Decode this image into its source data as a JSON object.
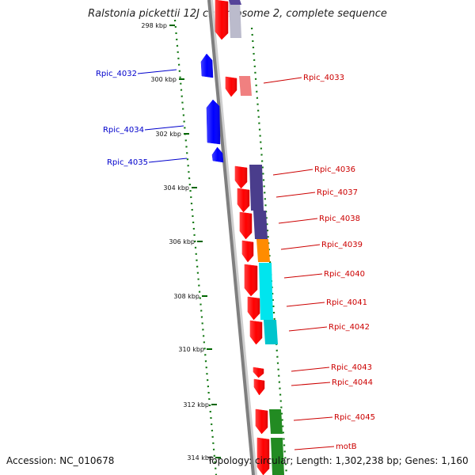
{
  "title": "Ralstonia pickettii 12J chromosome 2, complete sequence",
  "footer": {
    "accession": "Accession: NC_010678",
    "topology": "Topology: circular; Length: 1,302,238 bp; Genes: 1,160"
  },
  "colors": {
    "forward_gene": "#ff0000",
    "reverse_gene": "#0000ff",
    "forward_label": "#cc0000",
    "reverse_label": "#0000cc",
    "tick": "#006600",
    "backbone": "#808080"
  },
  "ticks": [
    "298 kbp",
    "300 kbp",
    "302 kbp",
    "304 kbp",
    "306 kbp",
    "308 kbp",
    "310 kbp",
    "312 kbp",
    "314 kbp"
  ],
  "reverse_labels": [
    "Rpic_4032",
    "Rpic_4034",
    "Rpic_4035"
  ],
  "forward_labels": [
    "Rpic_4033",
    "Rpic_4036",
    "Rpic_4037",
    "Rpic_4038",
    "Rpic_4039",
    "Rpic_4040",
    "Rpic_4041",
    "Rpic_4042",
    "Rpic_4043",
    "Rpic_4044",
    "Rpic_4045",
    "motB"
  ]
}
